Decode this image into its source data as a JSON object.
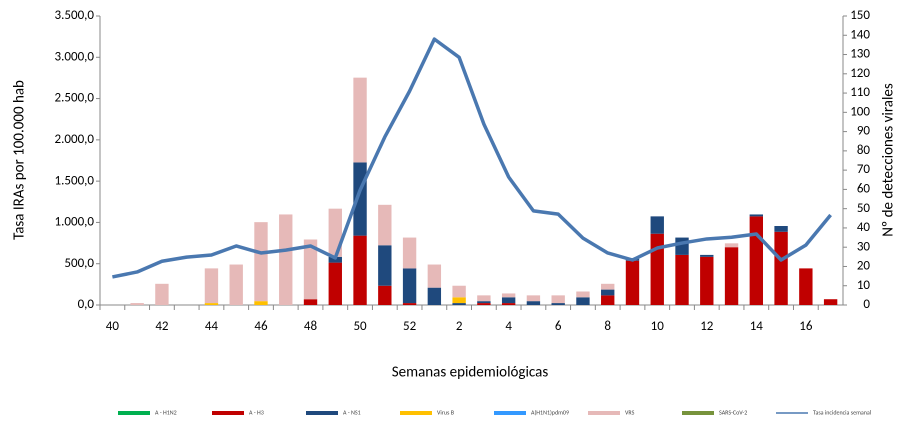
{
  "chart_data": {
    "type": "bar",
    "x_label": "Semanas epidemiológicas",
    "y_label": "Tasa IRAs por 100.000 hab",
    "y2_label": "Nº de detecciones virales",
    "categories": [
      "40",
      null,
      "42",
      null,
      "44",
      null,
      "46",
      null,
      "48",
      null,
      "50",
      null,
      "52",
      null,
      "2",
      null,
      "4",
      null,
      "6",
      null,
      "8",
      null,
      "10",
      null,
      "12",
      null,
      "14",
      null,
      "16",
      null
    ],
    "ylim": [
      0,
      3500
    ],
    "yticks": [
      {
        "value": 0,
        "label": "0,0"
      },
      {
        "value": 500,
        "label": "500,0"
      },
      {
        "value": 1000,
        "label": "1.000,0"
      },
      {
        "value": 1500,
        "label": "1.500,0"
      },
      {
        "value": 2000,
        "label": "2.000,0"
      },
      {
        "value": 2500,
        "label": "2.500,0"
      },
      {
        "value": 3000,
        "label": "3.000,0"
      },
      {
        "value": 3500,
        "label": "3.500,0"
      }
    ],
    "y2lim": [
      0,
      150
    ],
    "y2ticks": [
      0,
      10,
      20,
      30,
      40,
      50,
      60,
      70,
      80,
      90,
      100,
      110,
      120,
      130,
      140,
      150
    ],
    "grid": false,
    "legend": "bottom",
    "series": [
      {
        "name": "A - H1N2",
        "color": "#00b050",
        "axis": "y2",
        "values": [
          0,
          0,
          0,
          0,
          0,
          0,
          0,
          0,
          0,
          0,
          0,
          0,
          0,
          0,
          0,
          0,
          0,
          0,
          0,
          0,
          0,
          0,
          0,
          0,
          0,
          0,
          0,
          0,
          0,
          0
        ]
      },
      {
        "name": "A - H3",
        "color": "#c00000",
        "axis": "y2",
        "values": [
          0,
          0,
          0,
          0,
          0,
          0,
          0,
          0,
          3,
          22,
          36,
          10,
          1,
          0,
          0,
          1,
          1,
          0,
          0,
          0,
          5,
          23,
          37,
          26,
          25,
          30,
          46,
          38,
          19,
          3
        ]
      },
      {
        "name": "A - NS1",
        "color": "#1f497d",
        "axis": "y2",
        "values": [
          0,
          0,
          0,
          0,
          0,
          0,
          0,
          0,
          0,
          3,
          38,
          21,
          18,
          9,
          1,
          1,
          3,
          2,
          1,
          4,
          3,
          1,
          9,
          9,
          1,
          0,
          1,
          3,
          0,
          0
        ]
      },
      {
        "name": "Virus B",
        "color": "#ffc000",
        "axis": "y2",
        "values": [
          0,
          0,
          0,
          0,
          1,
          0,
          2,
          0,
          0,
          0,
          0,
          0,
          0,
          0,
          3,
          0,
          0,
          0,
          0,
          0,
          0,
          0,
          0,
          0,
          0,
          0,
          0,
          0,
          0,
          0
        ]
      },
      {
        "name": "A(H1N1)pdm09",
        "color": "#3399ff",
        "axis": "y2",
        "values": [
          0,
          0,
          0,
          0,
          0,
          0,
          0,
          0,
          0,
          0,
          0,
          0,
          0,
          0,
          0,
          0,
          0,
          0,
          0,
          0,
          0,
          0,
          0,
          0,
          0,
          0,
          0,
          0,
          0,
          0
        ]
      },
      {
        "name": "VRS",
        "color": "#e6b9b8",
        "axis": "y2",
        "values": [
          0,
          1,
          11,
          0,
          18,
          21,
          41,
          47,
          31,
          25,
          44,
          21,
          16,
          12,
          6,
          3,
          2,
          3,
          4,
          3,
          3,
          0,
          0,
          0,
          0,
          2,
          0,
          0,
          0,
          0
        ]
      },
      {
        "name": "SARS-CoV-2",
        "color": "#77933c",
        "axis": "y2",
        "values": [
          0,
          0,
          0,
          0,
          0,
          0,
          0,
          0,
          0,
          0,
          0,
          0,
          0,
          0,
          0,
          0,
          0,
          0,
          0,
          0,
          0,
          0,
          0,
          0,
          0,
          0,
          0,
          0,
          0,
          0
        ]
      },
      {
        "name": "Tasa incidencia semanal",
        "color": "#4a78b0",
        "type": "line",
        "values": [
          340,
          400,
          530,
          580,
          605,
          715,
          630,
          665,
          715,
          570,
          1390,
          2035,
          2590,
          3220,
          3000,
          2190,
          1550,
          1140,
          1100,
          810,
          630,
          545,
          690,
          750,
          800,
          820,
          860,
          545,
          725,
          1090
        ]
      }
    ]
  }
}
